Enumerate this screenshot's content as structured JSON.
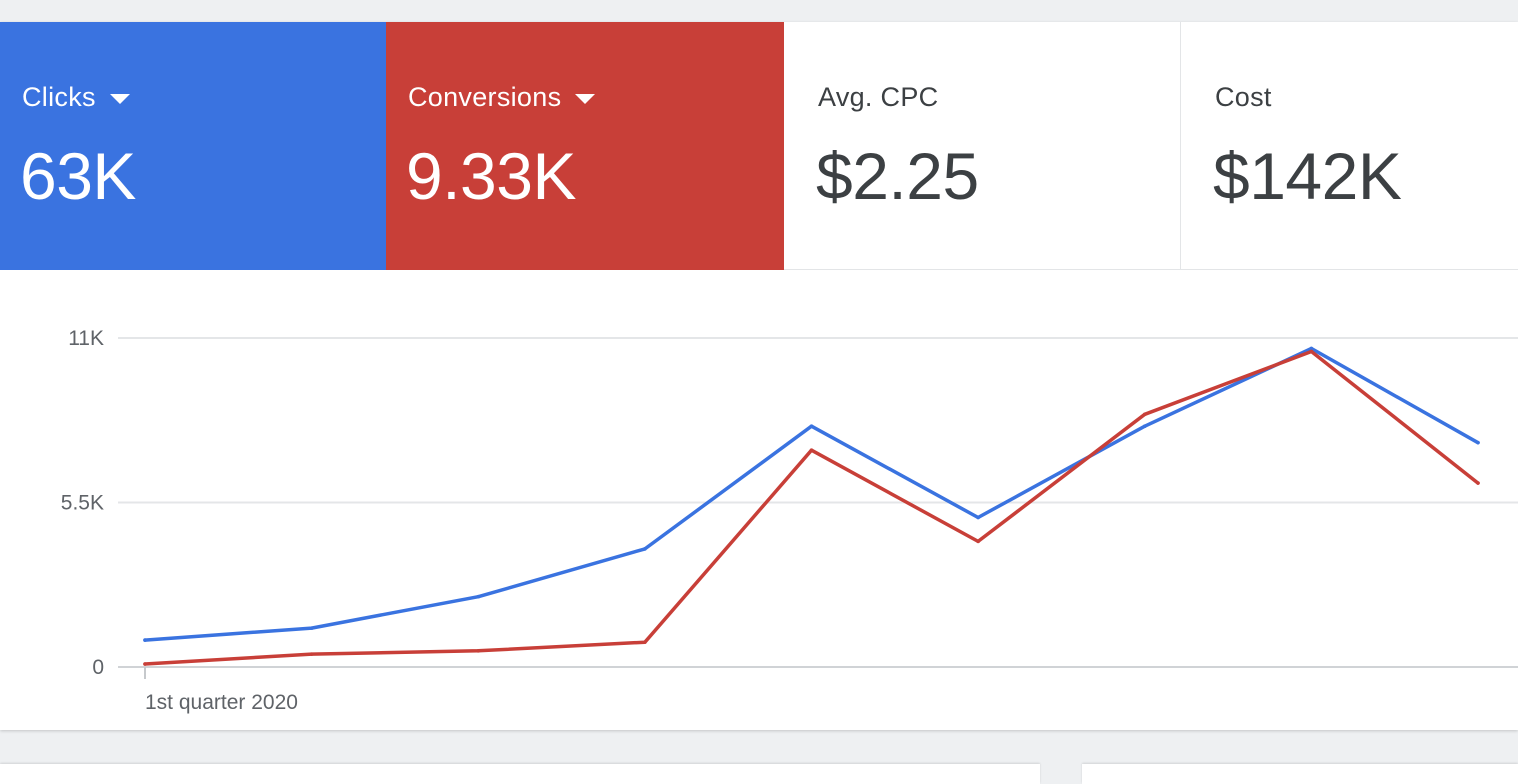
{
  "metrics": [
    {
      "label": "Clicks",
      "value": "63K",
      "bg": "#3a73e0",
      "fg": "#ffffff",
      "has_dropdown": true
    },
    {
      "label": "Conversions",
      "value": "9.33K",
      "bg": "#c83f38",
      "fg": "#ffffff",
      "has_dropdown": true
    },
    {
      "label": "Avg. CPC",
      "value": "$2.25",
      "bg": "#ffffff",
      "fg": "#3c4043",
      "has_dropdown": false
    },
    {
      "label": "Cost",
      "value": "$142K",
      "bg": "#ffffff",
      "fg": "#3c4043",
      "has_dropdown": false
    }
  ],
  "chart_data": {
    "type": "line",
    "y_tick_labels": [
      "11K",
      "5.5K",
      "0"
    ],
    "y_ticks": [
      11000,
      5500,
      0
    ],
    "ylim": [
      0,
      11000
    ],
    "x_tick_label": "1st quarter 2020",
    "x": [
      1,
      2,
      3,
      4,
      5,
      6,
      7,
      8,
      9
    ],
    "grid": true,
    "series": [
      {
        "color": "#3a73e0",
        "values": [
          900,
          1300,
          2350,
          3950,
          8050,
          5000,
          8050,
          10650,
          7500
        ]
      },
      {
        "color": "#c83f38",
        "values": [
          100,
          430,
          540,
          830,
          7250,
          4200,
          8450,
          10550,
          6150
        ]
      }
    ]
  }
}
